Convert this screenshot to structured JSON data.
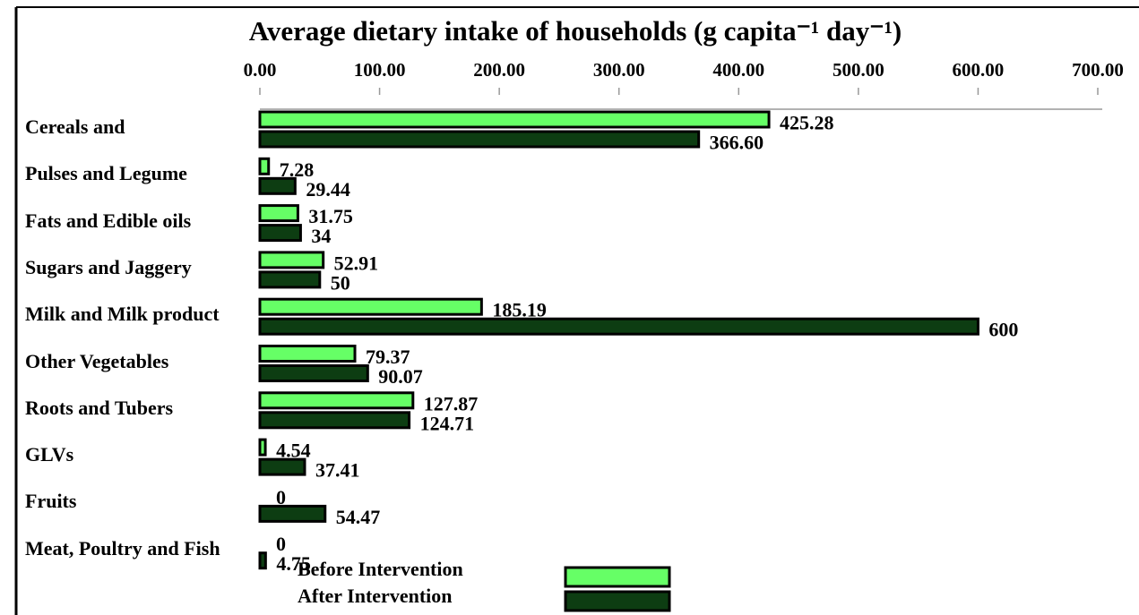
{
  "chart_data": {
    "type": "bar",
    "orientation": "horizontal",
    "title": "Average dietary intake of households (g capita⁻¹ day⁻¹)",
    "categories": [
      "Cereals and",
      "Pulses and  Legume",
      "Fats and Edible oils",
      "Sugars and Jaggery",
      "Milk and Milk product",
      "Other  Vegetables",
      "Roots and Tubers",
      "GLVs",
      "Fruits",
      "Meat, Poultry and Fish"
    ],
    "series": [
      {
        "name": "Before Intervention",
        "color": "#66ff66",
        "values": [
          425.28,
          7.28,
          31.75,
          52.91,
          185.19,
          79.37,
          127.87,
          4.54,
          0,
          0
        ]
      },
      {
        "name": "After Intervention",
        "color": "#0d3d12",
        "values": [
          366.6,
          29.44,
          34,
          50,
          600,
          90.07,
          124.71,
          37.41,
          54.47,
          4.75
        ],
        "value_labels": [
          "366.60",
          "29.44",
          "34",
          "50",
          "600",
          "90.07",
          "124.71",
          "37.41",
          "54.47",
          "4.75"
        ]
      }
    ],
    "xlim": [
      0,
      700
    ],
    "xticks": [
      {
        "value": 0,
        "label": "0.00"
      },
      {
        "value": 100,
        "label": "100.00"
      },
      {
        "value": 200,
        "label": "200.00"
      },
      {
        "value": 300,
        "label": "300.00"
      },
      {
        "value": 400,
        "label": "400.00"
      },
      {
        "value": 500,
        "label": "500.00"
      },
      {
        "value": 600,
        "label": "600.00"
      },
      {
        "value": 700,
        "label": "700.00"
      }
    ],
    "legend": "bottom"
  }
}
